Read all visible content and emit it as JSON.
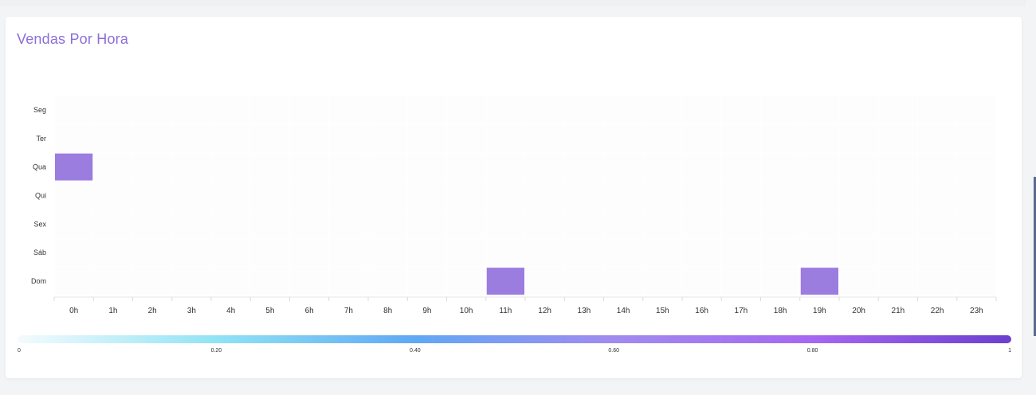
{
  "card": {
    "title": "Vendas Por Hora"
  },
  "chart_data": {
    "type": "heatmap",
    "title": "Vendas Por Hora",
    "x_categories": [
      "0h",
      "1h",
      "2h",
      "3h",
      "4h",
      "5h",
      "6h",
      "7h",
      "8h",
      "9h",
      "10h",
      "11h",
      "12h",
      "13h",
      "14h",
      "15h",
      "16h",
      "17h",
      "18h",
      "19h",
      "20h",
      "21h",
      "22h",
      "23h"
    ],
    "y_categories": [
      "Seg",
      "Ter",
      "Qua",
      "Qui",
      "Sex",
      "Sáb",
      "Dom"
    ],
    "cells": [
      {
        "x": "0h",
        "y": "Qua",
        "value": 0.68
      },
      {
        "x": "11h",
        "y": "Dom",
        "value": 0.68
      },
      {
        "x": "19h",
        "y": "Dom",
        "value": 0.68
      }
    ],
    "colorscale": {
      "min": 0,
      "max": 1,
      "ticks": [
        "0",
        "0.20",
        "0.40",
        "0.60",
        "0.80",
        "1"
      ],
      "colors": [
        "#f4fbfd",
        "#90e3f5",
        "#60a8f3",
        "#a18bef",
        "#a667f0",
        "#6c3fcf"
      ]
    },
    "cell_color": "#9b7de0",
    "empty_color": "#fdfdfd",
    "legend_placement": "bottom"
  }
}
